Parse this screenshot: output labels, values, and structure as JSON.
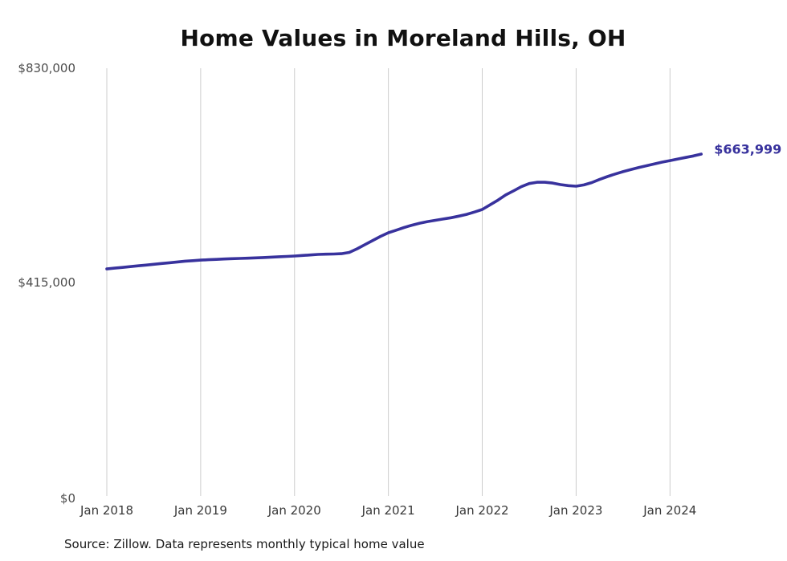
{
  "source_note": "Source: Zillow. Data represents monthly typical home value",
  "chart_data": {
    "type": "line",
    "title": "Home Values in Moreland Hills, OH",
    "xlabel": "",
    "ylabel": "",
    "ylim": [
      0,
      830000
    ],
    "y_tick_labels": [
      "$830,000",
      "$415,000",
      "$0"
    ],
    "x_tick_labels": [
      "Jan 2018",
      "Jan 2019",
      "Jan 2020",
      "Jan 2021",
      "Jan 2022",
      "Jan 2023",
      "Jan 2024"
    ],
    "grid": "vertical",
    "legend": "none",
    "grid_color": "#cccccc",
    "end_label": "$663,999",
    "x_months": [
      "2018-01",
      "2018-02",
      "2018-03",
      "2018-04",
      "2018-05",
      "2018-06",
      "2018-07",
      "2018-08",
      "2018-09",
      "2018-10",
      "2018-11",
      "2018-12",
      "2019-01",
      "2019-02",
      "2019-03",
      "2019-04",
      "2019-05",
      "2019-06",
      "2019-07",
      "2019-08",
      "2019-09",
      "2019-10",
      "2019-11",
      "2019-12",
      "2020-01",
      "2020-02",
      "2020-03",
      "2020-04",
      "2020-05",
      "2020-06",
      "2020-07",
      "2020-08",
      "2020-09",
      "2020-10",
      "2020-11",
      "2020-12",
      "2021-01",
      "2021-02",
      "2021-03",
      "2021-04",
      "2021-05",
      "2021-06",
      "2021-07",
      "2021-08",
      "2021-09",
      "2021-10",
      "2021-11",
      "2021-12",
      "2022-01",
      "2022-02",
      "2022-03",
      "2022-04",
      "2022-05",
      "2022-06",
      "2022-07",
      "2022-08",
      "2022-09",
      "2022-10",
      "2022-11",
      "2022-12",
      "2023-01",
      "2023-02",
      "2023-03",
      "2023-04",
      "2023-05",
      "2023-06",
      "2023-07",
      "2023-08",
      "2023-09",
      "2023-10",
      "2023-11",
      "2023-12",
      "2024-01",
      "2024-02",
      "2024-03",
      "2024-04",
      "2024-05"
    ],
    "series": [
      {
        "name": "Monthly typical home value",
        "color": "#38329d",
        "values": [
          442000,
          443500,
          445000,
          446500,
          448000,
          449500,
          451000,
          452500,
          454000,
          455500,
          457000,
          458000,
          459000,
          459800,
          460500,
          461200,
          461800,
          462300,
          462800,
          463400,
          464000,
          464800,
          465500,
          466200,
          467000,
          468000,
          469000,
          470000,
          470500,
          470800,
          471500,
          474000,
          481000,
          489000,
          497000,
          505000,
          512000,
          517000,
          522000,
          526500,
          530500,
          533500,
          536000,
          538500,
          541000,
          544000,
          547500,
          552000,
          557000,
          566000,
          575000,
          585000,
          593000,
          601000,
          607000,
          609500,
          609500,
          608000,
          605000,
          603000,
          602000,
          604500,
          609000,
          615000,
          620500,
          625500,
          630000,
          634000,
          638000,
          641500,
          645000,
          648500,
          651500,
          654500,
          657500,
          660500,
          663999
        ]
      }
    ]
  }
}
